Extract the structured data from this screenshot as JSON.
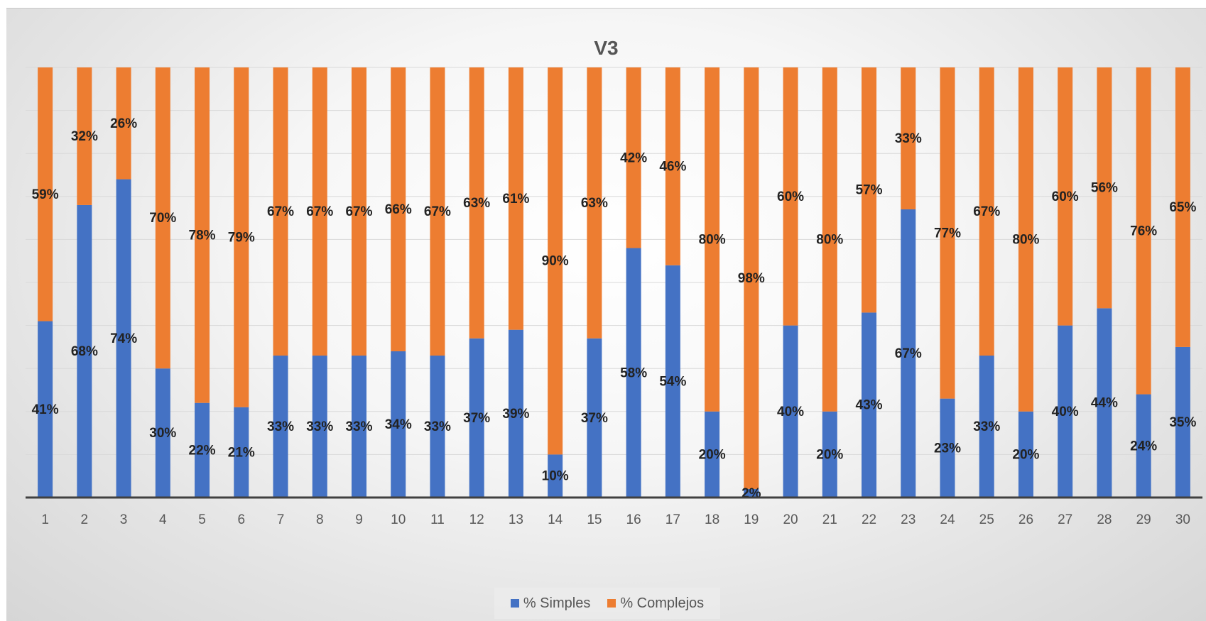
{
  "chart_data": {
    "type": "bar",
    "stacked": true,
    "title": "V3",
    "xlabel": "",
    "ylabel": "",
    "ylim": [
      0,
      100
    ],
    "grid": true,
    "legend_position": "bottom",
    "categories": [
      "1",
      "2",
      "3",
      "4",
      "5",
      "6",
      "7",
      "8",
      "9",
      "10",
      "11",
      "12",
      "13",
      "14",
      "15",
      "16",
      "17",
      "18",
      "19",
      "20",
      "21",
      "22",
      "23",
      "24",
      "25",
      "26",
      "27",
      "28",
      "29",
      "30"
    ],
    "series": [
      {
        "name": "% Simples",
        "color": "#4472C4",
        "values": [
          41,
          68,
          74,
          30,
          22,
          21,
          33,
          33,
          33,
          34,
          33,
          37,
          39,
          10,
          37,
          58,
          54,
          20,
          2,
          40,
          20,
          43,
          67,
          23,
          33,
          20,
          40,
          44,
          24,
          35
        ],
        "labels": [
          "41%",
          "68%",
          "74%",
          "30%",
          "22%",
          "21%",
          "33%",
          "33%",
          "33%",
          "34%",
          "33%",
          "37%",
          "39%",
          "10%",
          "37%",
          "58%",
          "54%",
          "20%",
          "2%",
          "40%",
          "20%",
          "43%",
          "67%",
          "23%",
          "33%",
          "20%",
          "40%",
          "44%",
          "24%",
          "35%"
        ]
      },
      {
        "name": "% Complejos",
        "color": "#ED7D31",
        "values": [
          59,
          32,
          26,
          70,
          78,
          79,
          67,
          67,
          67,
          66,
          67,
          63,
          61,
          90,
          63,
          42,
          46,
          80,
          98,
          60,
          80,
          57,
          33,
          77,
          67,
          80,
          60,
          56,
          76,
          65
        ],
        "labels": [
          "59%",
          "32%",
          "26%",
          "70%",
          "78%",
          "79%",
          "67%",
          "67%",
          "67%",
          "66%",
          "67%",
          "63%",
          "61%",
          "90%",
          "63%",
          "42%",
          "46%",
          "80%",
          "98%",
          "60%",
          "80%",
          "57%",
          "33%",
          "77%",
          "67%",
          "80%",
          "60%",
          "56%",
          "76%",
          "65%"
        ]
      }
    ]
  }
}
